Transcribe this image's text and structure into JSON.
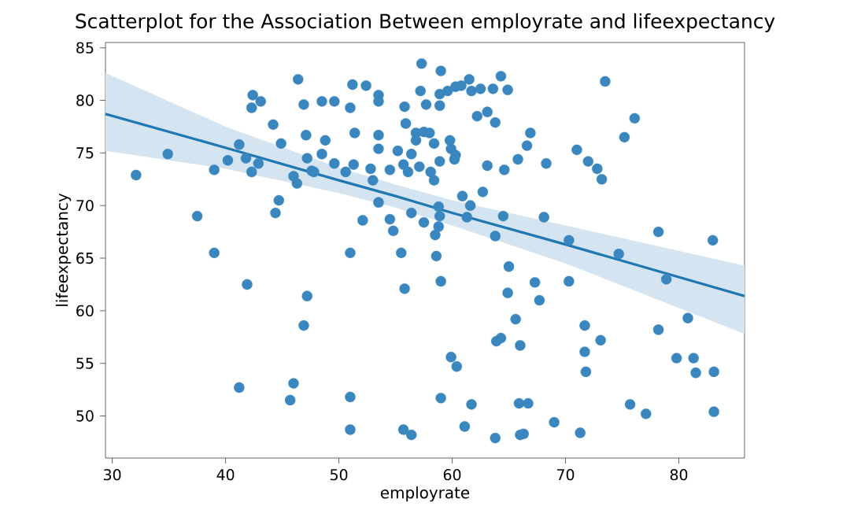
{
  "chart_data": {
    "type": "scatter",
    "title": "Scatterplot for the Association Between employrate and lifeexpectancy",
    "xlabel": "employrate",
    "ylabel": "lifeexpectancy",
    "xlim": [
      29.4,
      85.8
    ],
    "ylim": [
      46,
      85.5
    ],
    "xticks": [
      30,
      40,
      50,
      60,
      70,
      80
    ],
    "yticks": [
      50,
      55,
      60,
      65,
      70,
      75,
      80,
      85
    ],
    "grid": false,
    "series": [
      {
        "marker": "circle",
        "color": "#3a86bf",
        "x": [
          32.1,
          34.9,
          39.0,
          37.5,
          39.0,
          40.2,
          41.2,
          41.8,
          42.3,
          42.9,
          42.4,
          42.3,
          43.1,
          44.2,
          44.9,
          44.7,
          44.4,
          46.0,
          46.3,
          46.4,
          46.9,
          47.1,
          47.2,
          47.6,
          48.5,
          49.6,
          51.0,
          51.2,
          52.4,
          53.5,
          53.5,
          57.3,
          59.0,
          55.8,
          57.2,
          57.7,
          58.9,
          58.9,
          59.6,
          60.3,
          60.8,
          61.5,
          61.7,
          62.5,
          63.6,
          64.3,
          64.9,
          62.2,
          63.1,
          63.8,
          55.9,
          56.8,
          57.5,
          58.0,
          56.8,
          58.4,
          59.8,
          59.9,
          60.3,
          60.2,
          51.4,
          53.5,
          53.5,
          48.8,
          48.5,
          49.6,
          50.6,
          51.3,
          52.8,
          54.5,
          55.2,
          55.7,
          56.4,
          56.1,
          57.1,
          58.1,
          58.9,
          58.4,
          53.0,
          63.1,
          64.6,
          65.8,
          66.6,
          66.9,
          47.8,
          53.5,
          52.1,
          54.5,
          54.8,
          56.4,
          57.5,
          58.8,
          58.9,
          58.8,
          58.5,
          60.9,
          61.6,
          61.3,
          62.7,
          64.5,
          63.8,
          51.0,
          55.5,
          58.6,
          65.0,
          67.3,
          67.7,
          55.8,
          59.0,
          64.9,
          65.6,
          64.3,
          63.9,
          66.0,
          59.9,
          60.4,
          51.0,
          59.0,
          61.7,
          65.9,
          66.7,
          51.0,
          55.7,
          56.4,
          61.1,
          63.8,
          66.0,
          66.3,
          41.9,
          47.2,
          46.9,
          41.2,
          46.0,
          45.7,
          68.3,
          73.5,
          76.1,
          75.2,
          71.0,
          72.0,
          72.8,
          73.2,
          68.1,
          70.3,
          74.7,
          78.2,
          83.0,
          78.9,
          70.3,
          71.7,
          73.1,
          71.7,
          71.8,
          78.2,
          80.8,
          79.8,
          81.3,
          81.5,
          83.1,
          75.7,
          77.1,
          83.1,
          69.0,
          71.3
        ],
        "values": [
          72.9,
          74.9,
          73.4,
          69.0,
          65.5,
          74.3,
          75.8,
          74.5,
          73.2,
          74.0,
          80.5,
          79.3,
          79.9,
          77.7,
          75.9,
          70.5,
          69.3,
          72.8,
          72.1,
          82.0,
          79.6,
          76.7,
          74.5,
          73.3,
          79.9,
          79.9,
          79.3,
          81.5,
          81.4,
          80.5,
          79.9,
          83.5,
          82.8,
          79.4,
          80.9,
          79.6,
          80.6,
          79.5,
          80.9,
          81.3,
          81.4,
          82.0,
          80.9,
          81.1,
          81.1,
          82.3,
          81.0,
          78.5,
          78.9,
          77.9,
          77.8,
          76.9,
          77.0,
          76.9,
          76.2,
          75.9,
          76.2,
          75.4,
          74.8,
          74.4,
          76.9,
          76.7,
          75.4,
          76.2,
          74.9,
          74.0,
          73.2,
          73.9,
          73.5,
          73.4,
          75.2,
          73.9,
          74.9,
          73.2,
          73.7,
          73.2,
          74.2,
          72.4,
          72.4,
          73.8,
          73.4,
          74.4,
          75.7,
          76.9,
          73.2,
          70.3,
          68.6,
          68.7,
          67.6,
          69.3,
          68.4,
          69.9,
          69.0,
          68.0,
          67.2,
          70.9,
          70.0,
          68.9,
          71.3,
          69.0,
          67.1,
          65.5,
          65.5,
          65.2,
          64.2,
          62.7,
          61.0,
          62.1,
          62.8,
          61.7,
          59.2,
          57.4,
          57.1,
          56.7,
          55.6,
          54.7,
          51.8,
          51.7,
          51.1,
          51.2,
          51.2,
          48.7,
          48.7,
          48.2,
          49.0,
          47.9,
          48.2,
          48.3,
          62.5,
          61.4,
          58.6,
          52.7,
          53.1,
          51.5,
          74.0,
          81.8,
          78.3,
          76.5,
          75.3,
          74.2,
          73.5,
          72.5,
          68.9,
          66.7,
          65.4,
          67.5,
          66.7,
          63.0,
          62.8,
          58.6,
          57.2,
          56.1,
          54.2,
          58.2,
          59.3,
          55.5,
          55.5,
          54.1,
          54.2,
          51.1,
          50.2,
          50.4,
          49.4,
          48.4
        ]
      },
      {
        "type": "line",
        "marker": "none",
        "color": "#1f77b4",
        "x": [
          29.4,
          40,
          50,
          55,
          60,
          70,
          85.8
        ],
        "values": [
          78.7,
          75.5,
          72.4,
          70.9,
          69.3,
          66.3,
          61.4
        ],
        "lower": [
          75.2,
          73.5,
          71.2,
          69.8,
          68.1,
          64.5,
          57.8
        ],
        "upper": [
          82.6,
          77.5,
          73.6,
          72.0,
          70.5,
          68.1,
          64.3
        ]
      }
    ]
  }
}
